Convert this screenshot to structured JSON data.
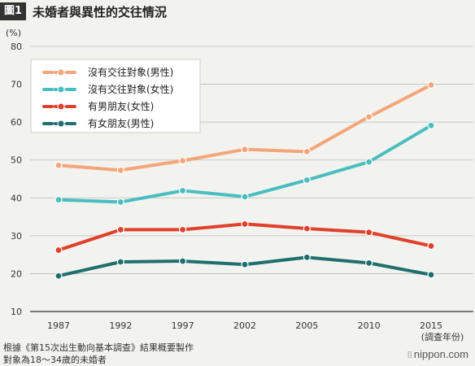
{
  "header": {
    "badge": "圖1",
    "title": "未婚者與異性的交往情況"
  },
  "chart_data": {
    "type": "line",
    "ylabel": "(%)",
    "xlabel": "(調查年份)",
    "ylim": [
      10,
      80
    ],
    "yticks": [
      10,
      20,
      30,
      40,
      50,
      60,
      70,
      80
    ],
    "grid": true,
    "legend_placement": "top-left",
    "x": [
      "1987",
      "1992",
      "1997",
      "2002",
      "2005",
      "2010",
      "2015"
    ],
    "series": [
      {
        "name": "沒有交往對象(男性)",
        "color": "#f5a57a",
        "values": [
          48.6,
          47.3,
          49.8,
          52.8,
          52.2,
          61.4,
          69.8
        ]
      },
      {
        "name": "沒有交往對象(女性)",
        "color": "#4bbdc0",
        "values": [
          39.5,
          38.9,
          41.9,
          40.3,
          44.7,
          49.5,
          59.1
        ]
      },
      {
        "name": "有男朋友(女性)",
        "color": "#e0402c",
        "values": [
          26.2,
          31.6,
          31.6,
          33.1,
          31.9,
          30.9,
          27.3
        ]
      },
      {
        "name": "有女朋友(男性)",
        "color": "#1f6e70",
        "values": [
          19.4,
          23.1,
          23.3,
          22.4,
          24.3,
          22.8,
          19.7
        ]
      }
    ]
  },
  "footer": {
    "source_line1": "根據《第15次出生動向基本調查》結果概要製作",
    "source_line2": "對象為18～34歲的未婚者",
    "brand": "nippon.com",
    "brand_icon": "dots-icon"
  }
}
